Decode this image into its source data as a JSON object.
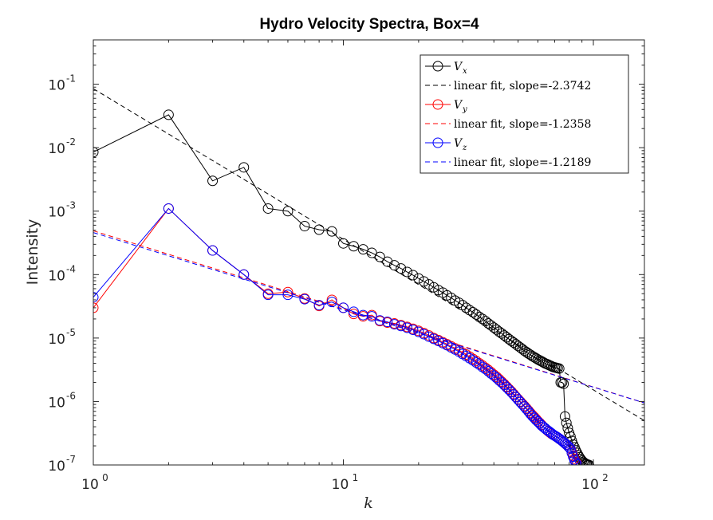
{
  "chart_data": {
    "type": "scatter",
    "title": "Hydro Velocity Spectra, Box=4",
    "xlabel": "k",
    "ylabel": "Intensity",
    "xscale": "log",
    "yscale": "log",
    "xlim": [
      1,
      160
    ],
    "ylim": [
      1e-07,
      0.5
    ],
    "grid": false,
    "legend_position": "top-right",
    "x_ticks": [
      {
        "value": 1,
        "base": "10",
        "exp": "0"
      },
      {
        "value": 10,
        "base": "10",
        "exp": "1"
      },
      {
        "value": 100,
        "base": "10",
        "exp": "2"
      }
    ],
    "y_ticks": [
      {
        "value": 1e-07,
        "base": "10",
        "exp": "-7"
      },
      {
        "value": 1e-06,
        "base": "10",
        "exp": "-6"
      },
      {
        "value": 1e-05,
        "base": "10",
        "exp": "-5"
      },
      {
        "value": 0.0001,
        "base": "10",
        "exp": "-4"
      },
      {
        "value": 0.001,
        "base": "10",
        "exp": "-3"
      },
      {
        "value": 0.01,
        "base": "10",
        "exp": "-2"
      },
      {
        "value": 0.1,
        "base": "10",
        "exp": "-1"
      }
    ],
    "series": [
      {
        "name": "V_x",
        "label_base": "V",
        "label_sub": "x",
        "color": "#000000",
        "style": "line-circles",
        "x": [
          1,
          2,
          3,
          4,
          5,
          6,
          7,
          8,
          9,
          10,
          11,
          12,
          13,
          14,
          15,
          16,
          17,
          18,
          19,
          20,
          21,
          22,
          23,
          24,
          25,
          26,
          27,
          28,
          29,
          30,
          31,
          32,
          33,
          34,
          35,
          36,
          37,
          38,
          39,
          40,
          41,
          42,
          43,
          44,
          45,
          46,
          47,
          48,
          49,
          50,
          51,
          52,
          53,
          54,
          55,
          56,
          57,
          58,
          59,
          60,
          61,
          62,
          63,
          64,
          65,
          66,
          67,
          68,
          69,
          70,
          71,
          72,
          73,
          74,
          75,
          76,
          77,
          78,
          79,
          80,
          81,
          82,
          83,
          84,
          85,
          86,
          87,
          88,
          89,
          90,
          91,
          92,
          93,
          94,
          95,
          96
        ],
        "y": [
          0.0085,
          0.033,
          0.003,
          0.0049,
          0.0011,
          0.001,
          0.00058,
          0.00051,
          0.00048,
          0.00031,
          0.00028,
          0.00025,
          0.00022,
          0.00019,
          0.00016,
          0.00014,
          0.000125,
          0.00011,
          9.8e-05,
          8.7e-05,
          7.8e-05,
          7e-05,
          6.3e-05,
          5.7e-05,
          5.2e-05,
          4.7e-05,
          4.3e-05,
          3.9e-05,
          3.6e-05,
          3.3e-05,
          3e-05,
          2.75e-05,
          2.55e-05,
          2.35e-05,
          2.15e-05,
          2e-05,
          1.85e-05,
          1.7e-05,
          1.58e-05,
          1.46e-05,
          1.36e-05,
          1.26e-05,
          1.18e-05,
          1.1e-05,
          1.03e-05,
          9.6e-06,
          9e-06,
          8.5e-06,
          8e-06,
          7.5e-06,
          7.1e-06,
          6.7e-06,
          6.3e-06,
          6e-06,
          5.7e-06,
          5.45e-06,
          5.2e-06,
          5e-06,
          4.8e-06,
          4.6e-06,
          4.45e-06,
          4.3e-06,
          4.15e-06,
          4e-06,
          3.9e-06,
          3.8e-06,
          3.7e-06,
          3.6e-06,
          3.5e-06,
          3.45e-06,
          3.4e-06,
          3.35e-06,
          3.3e-06,
          2e-06,
          2e-06,
          1.9e-06,
          5.8e-07,
          4.6e-07,
          3.8e-07,
          3.2e-07,
          2.8e-07,
          2.4e-07,
          2.1e-07,
          1.9e-07,
          1.7e-07,
          1.55e-07,
          1.42e-07,
          1.32e-07,
          1.24e-07,
          1.17e-07,
          1.12e-07,
          1.08e-07,
          1.05e-07,
          1.03e-07,
          1.01e-07,
          1e-07
        ]
      },
      {
        "name": "linear fit, slope=-2.3742",
        "color": "#000000",
        "style": "dashed",
        "x": [
          1,
          160
        ],
        "y": [
          0.085,
          5e-07
        ]
      },
      {
        "name": "V_y",
        "label_base": "V",
        "label_sub": "y",
        "color": "#ff0000",
        "style": "line-circles",
        "x": [
          1,
          2,
          3,
          4,
          5,
          6,
          7,
          8,
          9,
          10,
          11,
          12,
          13,
          14,
          15,
          16,
          17,
          18,
          19,
          20,
          21,
          22,
          23,
          24,
          25,
          26,
          27,
          28,
          29,
          30,
          31,
          32,
          33,
          34,
          35,
          36,
          37,
          38,
          39,
          40,
          41,
          42,
          43,
          44,
          45,
          46,
          47,
          48,
          49,
          50,
          51,
          52,
          53,
          54,
          55,
          56,
          57,
          58,
          59,
          60,
          61,
          62,
          63,
          64,
          65,
          66,
          67,
          68,
          69,
          70,
          71,
          72,
          73,
          74,
          75,
          76,
          77,
          78,
          79,
          80,
          81,
          82,
          83,
          84,
          85,
          86
        ],
        "y": [
          3e-05,
          0.0011,
          0.00024,
          0.0001,
          5e-05,
          5.3e-05,
          4.2e-05,
          3.2e-05,
          4e-05,
          3e-05,
          2.4e-05,
          2.2e-05,
          2.3e-05,
          1.85e-05,
          1.75e-05,
          1.7e-05,
          1.6e-05,
          1.5e-05,
          1.4e-05,
          1.3e-05,
          1.2e-05,
          1.1e-05,
          1e-05,
          9.3e-06,
          8.6e-06,
          8e-06,
          7.4e-06,
          6.9e-06,
          6.4e-06,
          5.9e-06,
          5.5e-06,
          5.1e-06,
          4.7e-06,
          4.35e-06,
          4e-06,
          3.7e-06,
          3.4e-06,
          3.15e-06,
          2.9e-06,
          2.65e-06,
          2.45e-06,
          2.25e-06,
          2.05e-06,
          1.88e-06,
          1.72e-06,
          1.57e-06,
          1.44e-06,
          1.31e-06,
          1.19e-06,
          1.09e-06,
          1e-06,
          9.2e-07,
          8.5e-07,
          7.8e-07,
          7.2e-07,
          6.6e-07,
          6.1e-07,
          5.7e-07,
          5.3e-07,
          4.9e-07,
          4.6e-07,
          4.3e-07,
          4e-07,
          3.8e-07,
          3.6e-07,
          3.4e-07,
          3.25e-07,
          3.1e-07,
          3e-07,
          2.9e-07,
          2.8e-07,
          2.7e-07,
          2.6e-07,
          2.5e-07,
          2.4e-07,
          2.3e-07,
          2.2e-07,
          2.1e-07,
          2e-07,
          1.9e-07,
          1.8e-07,
          1.6e-07,
          1.4e-07,
          1.25e-07,
          1.1e-07,
          1.05e-07
        ]
      },
      {
        "name": "linear fit, slope=-1.2358",
        "color": "#ff0000",
        "style": "dashed",
        "x": [
          1,
          160
        ],
        "y": [
          0.00049,
          9.5e-07
        ]
      },
      {
        "name": "V_z",
        "label_base": "V",
        "label_sub": "z",
        "color": "#0000ff",
        "style": "line-circles",
        "x": [
          1,
          2,
          3,
          4,
          5,
          6,
          7,
          8,
          9,
          10,
          11,
          12,
          13,
          14,
          15,
          16,
          17,
          18,
          19,
          20,
          21,
          22,
          23,
          24,
          25,
          26,
          27,
          28,
          29,
          30,
          31,
          32,
          33,
          34,
          35,
          36,
          37,
          38,
          39,
          40,
          41,
          42,
          43,
          44,
          45,
          46,
          47,
          48,
          49,
          50,
          51,
          52,
          53,
          54,
          55,
          56,
          57,
          58,
          59,
          60,
          61,
          62,
          63,
          64,
          65,
          66,
          67,
          68,
          69,
          70,
          71,
          72,
          73,
          74,
          75,
          76,
          77,
          78,
          79,
          80,
          81,
          82,
          83,
          84,
          85,
          86
        ],
        "y": [
          4.4e-05,
          0.0011,
          0.00024,
          0.0001,
          4.8e-05,
          4.8e-05,
          4.1e-05,
          3.3e-05,
          3.7e-05,
          3e-05,
          2.6e-05,
          2.3e-05,
          2.2e-05,
          1.9e-05,
          1.8e-05,
          1.65e-05,
          1.55e-05,
          1.45e-05,
          1.35e-05,
          1.25e-05,
          1.15e-05,
          1.05e-05,
          9.7e-06,
          9e-06,
          8.3e-06,
          7.7e-06,
          7.1e-06,
          6.6e-06,
          6.1e-06,
          5.6e-06,
          5.2e-06,
          4.8e-06,
          4.45e-06,
          4.1e-06,
          3.8e-06,
          3.5e-06,
          3.25e-06,
          3e-06,
          2.75e-06,
          2.55e-06,
          2.35e-06,
          2.15e-06,
          1.98e-06,
          1.82e-06,
          1.67e-06,
          1.53e-06,
          1.4e-06,
          1.28e-06,
          1.17e-06,
          1.07e-06,
          9.8e-07,
          9e-07,
          8.3e-07,
          7.6e-07,
          7e-07,
          6.4e-07,
          5.9e-07,
          5.5e-07,
          5.1e-07,
          4.8e-07,
          4.5e-07,
          4.2e-07,
          4e-07,
          3.8e-07,
          3.6e-07,
          3.45e-07,
          3.3e-07,
          3.15e-07,
          3e-07,
          2.9e-07,
          2.8e-07,
          2.7e-07,
          2.6e-07,
          2.5e-07,
          2.4e-07,
          2.3e-07,
          2.2e-07,
          2.1e-07,
          2e-07,
          1.9e-07,
          1.8e-07,
          1.55e-07,
          1.35e-07,
          1.2e-07,
          1.08e-07,
          1.02e-07
        ]
      },
      {
        "name": "linear fit, slope=-1.2189",
        "color": "#0000ff",
        "style": "dashed",
        "x": [
          1,
          160
        ],
        "y": [
          0.00046,
          9.5e-07
        ]
      }
    ]
  }
}
